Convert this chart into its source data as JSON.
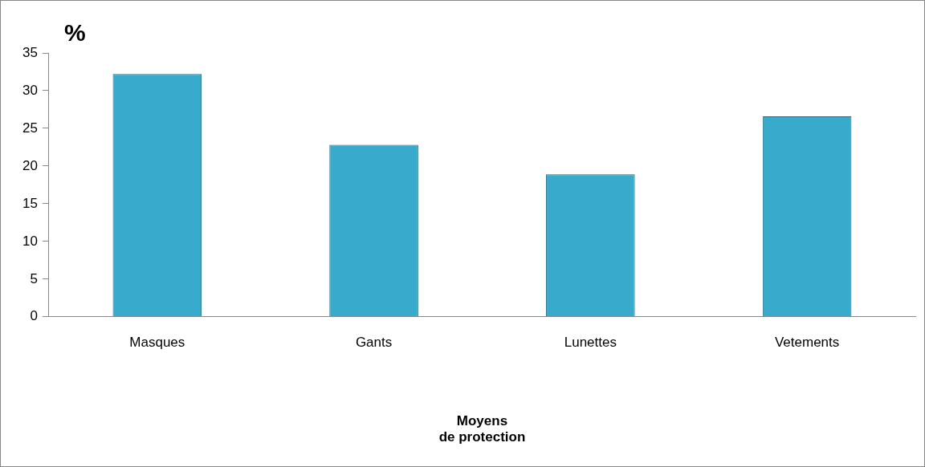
{
  "chart_data": {
    "type": "bar",
    "ylabel": "%",
    "xlabel": "Moyens\nde protection",
    "categories": [
      "Masques",
      "Gants",
      "Lunettes",
      "Vetements"
    ],
    "values": [
      32.2,
      22.8,
      18.9,
      26.6
    ],
    "color": "#38aacb",
    "ylim": [
      0,
      35
    ],
    "yticks": [
      0,
      5,
      10,
      15,
      20,
      25,
      30,
      35
    ],
    "grid": false,
    "legend": false
  }
}
